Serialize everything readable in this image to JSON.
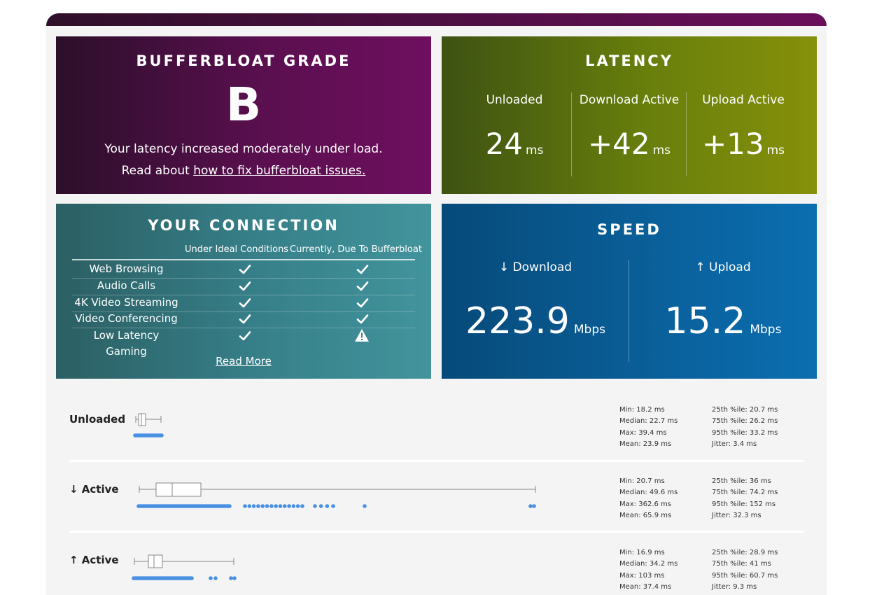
{
  "grade": {
    "title": "BUFFERBLOAT GRADE",
    "letter": "B",
    "description": "Your latency increased moderately under load.",
    "read_prefix": "Read about ",
    "fix_link": "how to fix bufferbloat issues."
  },
  "latency": {
    "title": "LATENCY",
    "columns": [
      {
        "label": "Unloaded",
        "value": "24",
        "unit": "ms"
      },
      {
        "label": "Download Active",
        "value": "+42",
        "unit": "ms"
      },
      {
        "label": "Upload Active",
        "value": "+13",
        "unit": "ms"
      }
    ]
  },
  "connection": {
    "title": "YOUR CONNECTION",
    "col_ideal": "Under Ideal Conditions",
    "col_current": "Currently, Due To Bufferbloat",
    "rows": [
      {
        "name": "Web Browsing",
        "ideal": "check-icon",
        "current": "check-icon"
      },
      {
        "name": "Audio Calls",
        "ideal": "check-icon",
        "current": "check-icon"
      },
      {
        "name": "4K Video Streaming",
        "ideal": "check-icon",
        "current": "check-icon"
      },
      {
        "name": "Video Conferencing",
        "ideal": "check-icon",
        "current": "check-icon"
      },
      {
        "name": "Low Latency Gaming",
        "ideal": "check-icon",
        "current": "warning-icon"
      }
    ],
    "read_more": "Read More"
  },
  "speed": {
    "title": "SPEED",
    "download": {
      "label": "↓ Download",
      "value": "223.9",
      "unit": "Mbps"
    },
    "upload": {
      "label": "↑ Upload",
      "value": "15.2",
      "unit": "Mbps"
    }
  },
  "stats": [
    {
      "label": "Unloaded",
      "min": "Min: 18.2 ms",
      "median": "Median: 22.7 ms",
      "max": "Max: 39.4 ms",
      "mean": "Mean: 23.9 ms",
      "p25": "25th %ile: 20.7 ms",
      "p75": "75th %ile: 26.2 ms",
      "p95": "95th %ile: 33.2 ms",
      "jitter": "Jitter: 3.4 ms"
    },
    {
      "label": "↓ Active",
      "min": "Min: 20.7 ms",
      "median": "Median: 49.6 ms",
      "max": "Max: 362.6 ms",
      "mean": "Mean: 65.9 ms",
      "p25": "25th %ile: 36 ms",
      "p75": "75th %ile: 74.2 ms",
      "p95": "95th %ile: 152 ms",
      "jitter": "Jitter: 32.3 ms"
    },
    {
      "label": "↑ Active",
      "min": "Min: 16.9 ms",
      "median": "Median: 34.2 ms",
      "max": "Max: 103 ms",
      "mean": "Mean: 37.4 ms",
      "p25": "25th %ile: 28.9 ms",
      "p75": "75th %ile: 41 ms",
      "p95": "95th %ile: 60.7 ms",
      "jitter": "Jitter: 9.3 ms"
    }
  ],
  "colors": {
    "grade_bg": "#5a0f4f",
    "latency_bg": "#687f0c",
    "connection_bg": "#37808a",
    "speed_bg": "#0a5f99",
    "dot_blue": "#4a90e2"
  }
}
